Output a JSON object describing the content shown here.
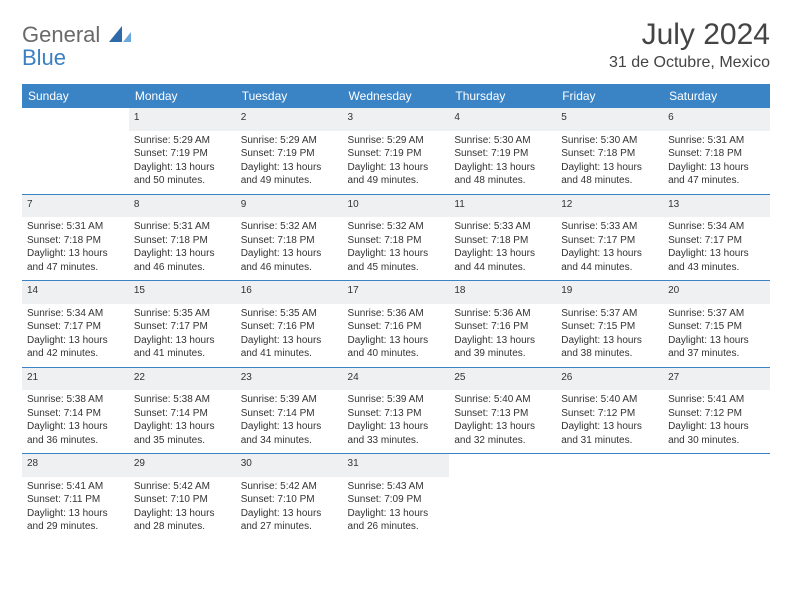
{
  "logo": {
    "word1": "General",
    "word2": "Blue"
  },
  "header": {
    "title": "July 2024",
    "subtitle": "31 de Octubre, Mexico"
  },
  "theme": {
    "header_bg": "#3a83c5",
    "header_text": "#ffffff",
    "daynum_bg": "#eef0f1",
    "daynum_color": "#5a5a5a",
    "body_text": "#333333",
    "rule_color": "#3a83c5",
    "title_fontsize": 30,
    "subtitle_fontsize": 16,
    "dayhead_fontsize": 12,
    "cell_fontsize": 10
  },
  "days_of_week": [
    "Sunday",
    "Monday",
    "Tuesday",
    "Wednesday",
    "Thursday",
    "Friday",
    "Saturday"
  ],
  "weeks": [
    {
      "nums": [
        "",
        "1",
        "2",
        "3",
        "4",
        "5",
        "6"
      ],
      "cells": [
        {
          "lines": []
        },
        {
          "lines": [
            "Sunrise: 5:29 AM",
            "Sunset: 7:19 PM",
            "Daylight: 13 hours",
            "and 50 minutes."
          ]
        },
        {
          "lines": [
            "Sunrise: 5:29 AM",
            "Sunset: 7:19 PM",
            "Daylight: 13 hours",
            "and 49 minutes."
          ]
        },
        {
          "lines": [
            "Sunrise: 5:29 AM",
            "Sunset: 7:19 PM",
            "Daylight: 13 hours",
            "and 49 minutes."
          ]
        },
        {
          "lines": [
            "Sunrise: 5:30 AM",
            "Sunset: 7:19 PM",
            "Daylight: 13 hours",
            "and 48 minutes."
          ]
        },
        {
          "lines": [
            "Sunrise: 5:30 AM",
            "Sunset: 7:18 PM",
            "Daylight: 13 hours",
            "and 48 minutes."
          ]
        },
        {
          "lines": [
            "Sunrise: 5:31 AM",
            "Sunset: 7:18 PM",
            "Daylight: 13 hours",
            "and 47 minutes."
          ]
        }
      ]
    },
    {
      "nums": [
        "7",
        "8",
        "9",
        "10",
        "11",
        "12",
        "13"
      ],
      "cells": [
        {
          "lines": [
            "Sunrise: 5:31 AM",
            "Sunset: 7:18 PM",
            "Daylight: 13 hours",
            "and 47 minutes."
          ]
        },
        {
          "lines": [
            "Sunrise: 5:31 AM",
            "Sunset: 7:18 PM",
            "Daylight: 13 hours",
            "and 46 minutes."
          ]
        },
        {
          "lines": [
            "Sunrise: 5:32 AM",
            "Sunset: 7:18 PM",
            "Daylight: 13 hours",
            "and 46 minutes."
          ]
        },
        {
          "lines": [
            "Sunrise: 5:32 AM",
            "Sunset: 7:18 PM",
            "Daylight: 13 hours",
            "and 45 minutes."
          ]
        },
        {
          "lines": [
            "Sunrise: 5:33 AM",
            "Sunset: 7:18 PM",
            "Daylight: 13 hours",
            "and 44 minutes."
          ]
        },
        {
          "lines": [
            "Sunrise: 5:33 AM",
            "Sunset: 7:17 PM",
            "Daylight: 13 hours",
            "and 44 minutes."
          ]
        },
        {
          "lines": [
            "Sunrise: 5:34 AM",
            "Sunset: 7:17 PM",
            "Daylight: 13 hours",
            "and 43 minutes."
          ]
        }
      ]
    },
    {
      "nums": [
        "14",
        "15",
        "16",
        "17",
        "18",
        "19",
        "20"
      ],
      "cells": [
        {
          "lines": [
            "Sunrise: 5:34 AM",
            "Sunset: 7:17 PM",
            "Daylight: 13 hours",
            "and 42 minutes."
          ]
        },
        {
          "lines": [
            "Sunrise: 5:35 AM",
            "Sunset: 7:17 PM",
            "Daylight: 13 hours",
            "and 41 minutes."
          ]
        },
        {
          "lines": [
            "Sunrise: 5:35 AM",
            "Sunset: 7:16 PM",
            "Daylight: 13 hours",
            "and 41 minutes."
          ]
        },
        {
          "lines": [
            "Sunrise: 5:36 AM",
            "Sunset: 7:16 PM",
            "Daylight: 13 hours",
            "and 40 minutes."
          ]
        },
        {
          "lines": [
            "Sunrise: 5:36 AM",
            "Sunset: 7:16 PM",
            "Daylight: 13 hours",
            "and 39 minutes."
          ]
        },
        {
          "lines": [
            "Sunrise: 5:37 AM",
            "Sunset: 7:15 PM",
            "Daylight: 13 hours",
            "and 38 minutes."
          ]
        },
        {
          "lines": [
            "Sunrise: 5:37 AM",
            "Sunset: 7:15 PM",
            "Daylight: 13 hours",
            "and 37 minutes."
          ]
        }
      ]
    },
    {
      "nums": [
        "21",
        "22",
        "23",
        "24",
        "25",
        "26",
        "27"
      ],
      "cells": [
        {
          "lines": [
            "Sunrise: 5:38 AM",
            "Sunset: 7:14 PM",
            "Daylight: 13 hours",
            "and 36 minutes."
          ]
        },
        {
          "lines": [
            "Sunrise: 5:38 AM",
            "Sunset: 7:14 PM",
            "Daylight: 13 hours",
            "and 35 minutes."
          ]
        },
        {
          "lines": [
            "Sunrise: 5:39 AM",
            "Sunset: 7:14 PM",
            "Daylight: 13 hours",
            "and 34 minutes."
          ]
        },
        {
          "lines": [
            "Sunrise: 5:39 AM",
            "Sunset: 7:13 PM",
            "Daylight: 13 hours",
            "and 33 minutes."
          ]
        },
        {
          "lines": [
            "Sunrise: 5:40 AM",
            "Sunset: 7:13 PM",
            "Daylight: 13 hours",
            "and 32 minutes."
          ]
        },
        {
          "lines": [
            "Sunrise: 5:40 AM",
            "Sunset: 7:12 PM",
            "Daylight: 13 hours",
            "and 31 minutes."
          ]
        },
        {
          "lines": [
            "Sunrise: 5:41 AM",
            "Sunset: 7:12 PM",
            "Daylight: 13 hours",
            "and 30 minutes."
          ]
        }
      ]
    },
    {
      "nums": [
        "28",
        "29",
        "30",
        "31",
        "",
        "",
        ""
      ],
      "cells": [
        {
          "lines": [
            "Sunrise: 5:41 AM",
            "Sunset: 7:11 PM",
            "Daylight: 13 hours",
            "and 29 minutes."
          ]
        },
        {
          "lines": [
            "Sunrise: 5:42 AM",
            "Sunset: 7:10 PM",
            "Daylight: 13 hours",
            "and 28 minutes."
          ]
        },
        {
          "lines": [
            "Sunrise: 5:42 AM",
            "Sunset: 7:10 PM",
            "Daylight: 13 hours",
            "and 27 minutes."
          ]
        },
        {
          "lines": [
            "Sunrise: 5:43 AM",
            "Sunset: 7:09 PM",
            "Daylight: 13 hours",
            "and 26 minutes."
          ]
        },
        {
          "lines": []
        },
        {
          "lines": []
        },
        {
          "lines": []
        }
      ]
    }
  ]
}
